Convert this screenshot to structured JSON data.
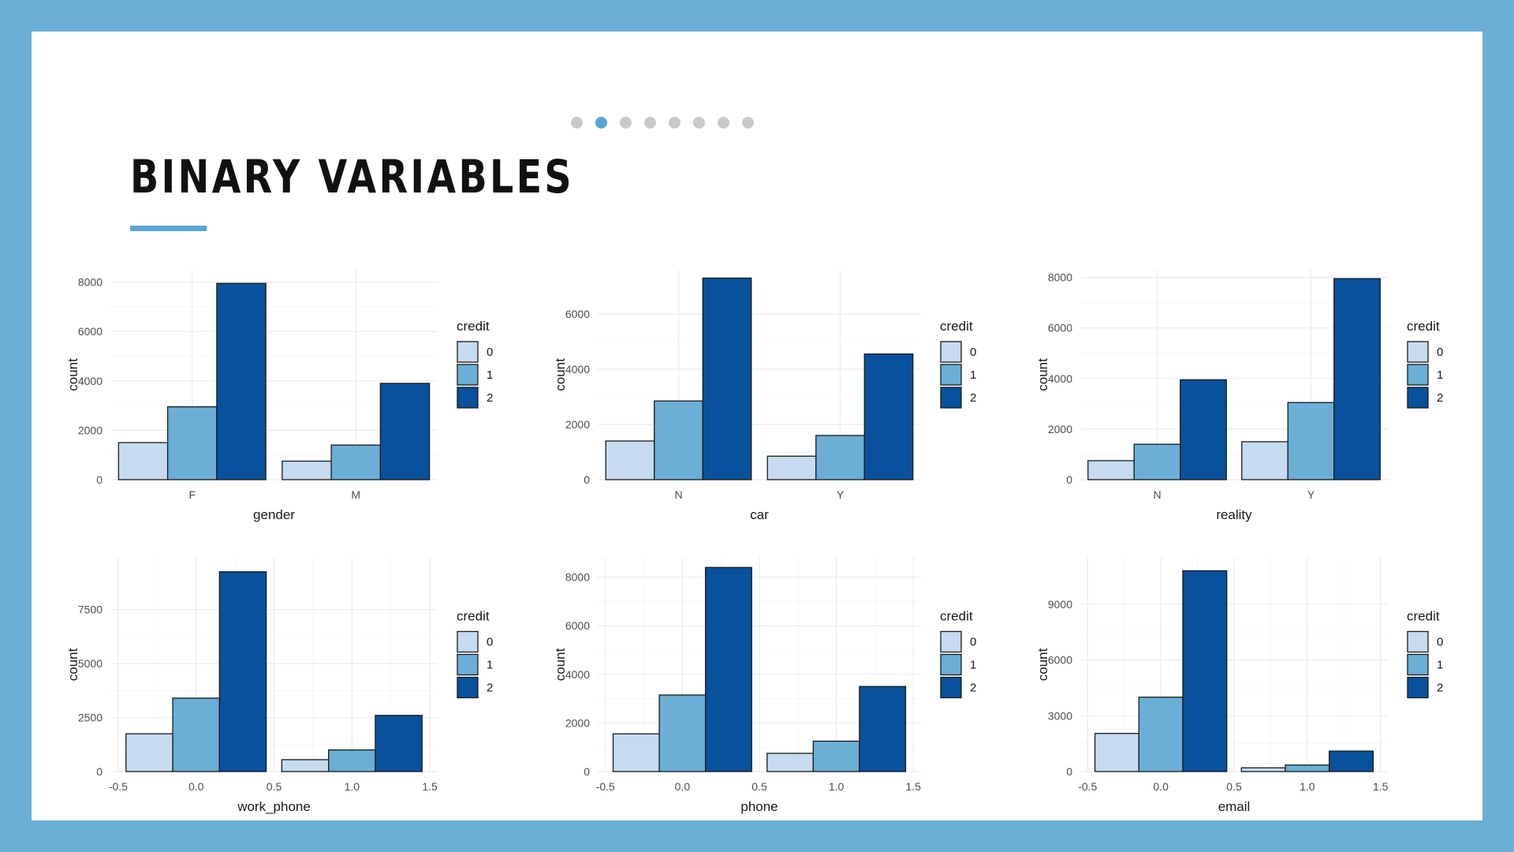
{
  "slide": {
    "title": "BINARY VARIABLES",
    "dots": {
      "count": 8,
      "active_index": 1
    },
    "colors": {
      "frame": "#6aaed6",
      "accent": "#5aa5d8",
      "dot": "#c9c9c9"
    }
  },
  "chart_data": [
    {
      "type": "bar",
      "xlabel": "gender",
      "ylabel": "count",
      "categories": [
        "F",
        "M"
      ],
      "legend_title": "credit",
      "ylim": [
        0,
        8500
      ],
      "yticks": [
        0,
        2000,
        4000,
        6000,
        8000
      ],
      "series": [
        {
          "name": "0",
          "color": "#c6dbef",
          "values": [
            1500,
            750
          ]
        },
        {
          "name": "1",
          "color": "#6baed6",
          "values": [
            2950,
            1400
          ]
        },
        {
          "name": "2",
          "color": "#08519c",
          "values": [
            7950,
            3900
          ]
        }
      ]
    },
    {
      "type": "bar",
      "xlabel": "car",
      "ylabel": "count",
      "categories": [
        "N",
        "Y"
      ],
      "legend_title": "credit",
      "ylim": [
        0,
        7600
      ],
      "yticks": [
        0,
        2000,
        4000,
        6000
      ],
      "series": [
        {
          "name": "0",
          "color": "#c6dbef",
          "values": [
            1400,
            850
          ]
        },
        {
          "name": "1",
          "color": "#6baed6",
          "values": [
            2850,
            1600
          ]
        },
        {
          "name": "2",
          "color": "#08519c",
          "values": [
            7300,
            4550
          ]
        }
      ]
    },
    {
      "type": "bar",
      "xlabel": "reality",
      "ylabel": "count",
      "categories": [
        "N",
        "Y"
      ],
      "legend_title": "credit",
      "ylim": [
        0,
        8300
      ],
      "yticks": [
        0,
        2000,
        4000,
        6000,
        8000
      ],
      "series": [
        {
          "name": "0",
          "color": "#c6dbef",
          "values": [
            750,
            1500
          ]
        },
        {
          "name": "1",
          "color": "#6baed6",
          "values": [
            1400,
            3050
          ]
        },
        {
          "name": "2",
          "color": "#08519c",
          "values": [
            3950,
            7950
          ]
        }
      ]
    },
    {
      "type": "bar",
      "xlabel": "work_phone",
      "ylabel": "count",
      "categories": [
        "0",
        "1"
      ],
      "x_positions": [
        0,
        1
      ],
      "xlim": [
        -0.55,
        1.55
      ],
      "xticks": [
        "-0.5",
        "0.0",
        "0.5",
        "1.0",
        "1.5"
      ],
      "legend_title": "credit",
      "ylim": [
        0,
        9900
      ],
      "yticks": [
        0,
        2500,
        5000,
        7500
      ],
      "series": [
        {
          "name": "0",
          "color": "#c6dbef",
          "values": [
            1750,
            550
          ]
        },
        {
          "name": "1",
          "color": "#6baed6",
          "values": [
            3400,
            1000
          ]
        },
        {
          "name": "2",
          "color": "#08519c",
          "values": [
            9250,
            2600
          ]
        }
      ]
    },
    {
      "type": "bar",
      "xlabel": "phone",
      "ylabel": "count",
      "categories": [
        "0",
        "1"
      ],
      "x_positions": [
        0,
        1
      ],
      "xlim": [
        -0.55,
        1.55
      ],
      "xticks": [
        "-0.5",
        "0.0",
        "0.5",
        "1.0",
        "1.5"
      ],
      "legend_title": "credit",
      "ylim": [
        0,
        8800
      ],
      "yticks": [
        0,
        2000,
        4000,
        6000,
        8000
      ],
      "series": [
        {
          "name": "0",
          "color": "#c6dbef",
          "values": [
            1550,
            750
          ]
        },
        {
          "name": "1",
          "color": "#6baed6",
          "values": [
            3150,
            1250
          ]
        },
        {
          "name": "2",
          "color": "#08519c",
          "values": [
            8400,
            3500
          ]
        }
      ]
    },
    {
      "type": "bar",
      "xlabel": "email",
      "ylabel": "count",
      "categories": [
        "0",
        "1"
      ],
      "x_positions": [
        0,
        1
      ],
      "xlim": [
        -0.55,
        1.55
      ],
      "xticks": [
        "-0.5",
        "0.0",
        "0.5",
        "1.0",
        "1.5"
      ],
      "legend_title": "credit",
      "ylim": [
        0,
        11500
      ],
      "yticks": [
        0,
        3000,
        6000,
        9000
      ],
      "series": [
        {
          "name": "0",
          "color": "#c6dbef",
          "values": [
            2050,
            200
          ]
        },
        {
          "name": "1",
          "color": "#6baed6",
          "values": [
            4000,
            350
          ]
        },
        {
          "name": "2",
          "color": "#08519c",
          "values": [
            10800,
            1100
          ]
        }
      ]
    }
  ]
}
